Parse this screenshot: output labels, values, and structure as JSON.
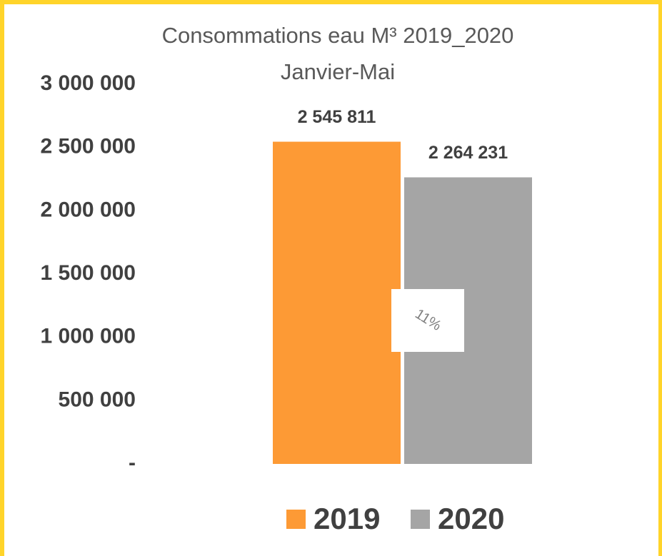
{
  "chart_data": {
    "type": "bar",
    "title": "Consommations eau M³ 2019_2020",
    "subtitle": "Janvier-Mai",
    "categories": [
      null
    ],
    "series": [
      {
        "name": "2019",
        "color": "#fd9a35",
        "values": [
          2545811
        ],
        "value_labels": [
          "2 545 811"
        ]
      },
      {
        "name": "2020",
        "color": "#a5a5a5",
        "values": [
          2264231
        ],
        "value_labels": [
          "2 264 231"
        ]
      }
    ],
    "ylim": [
      0,
      3000000
    ],
    "yticks": [
      {
        "value": 0,
        "label": "-"
      },
      {
        "value": 500000,
        "label": "500 000"
      },
      {
        "value": 1000000,
        "label": "1 000 000"
      },
      {
        "value": 1500000,
        "label": "1 500 000"
      },
      {
        "value": 2000000,
        "label": "2 000 000"
      },
      {
        "value": 2500000,
        "label": "2 500 000"
      },
      {
        "value": 3000000,
        "label": "3 000 000"
      }
    ],
    "grid": false,
    "legend": "bottom",
    "annotation": "11%"
  }
}
